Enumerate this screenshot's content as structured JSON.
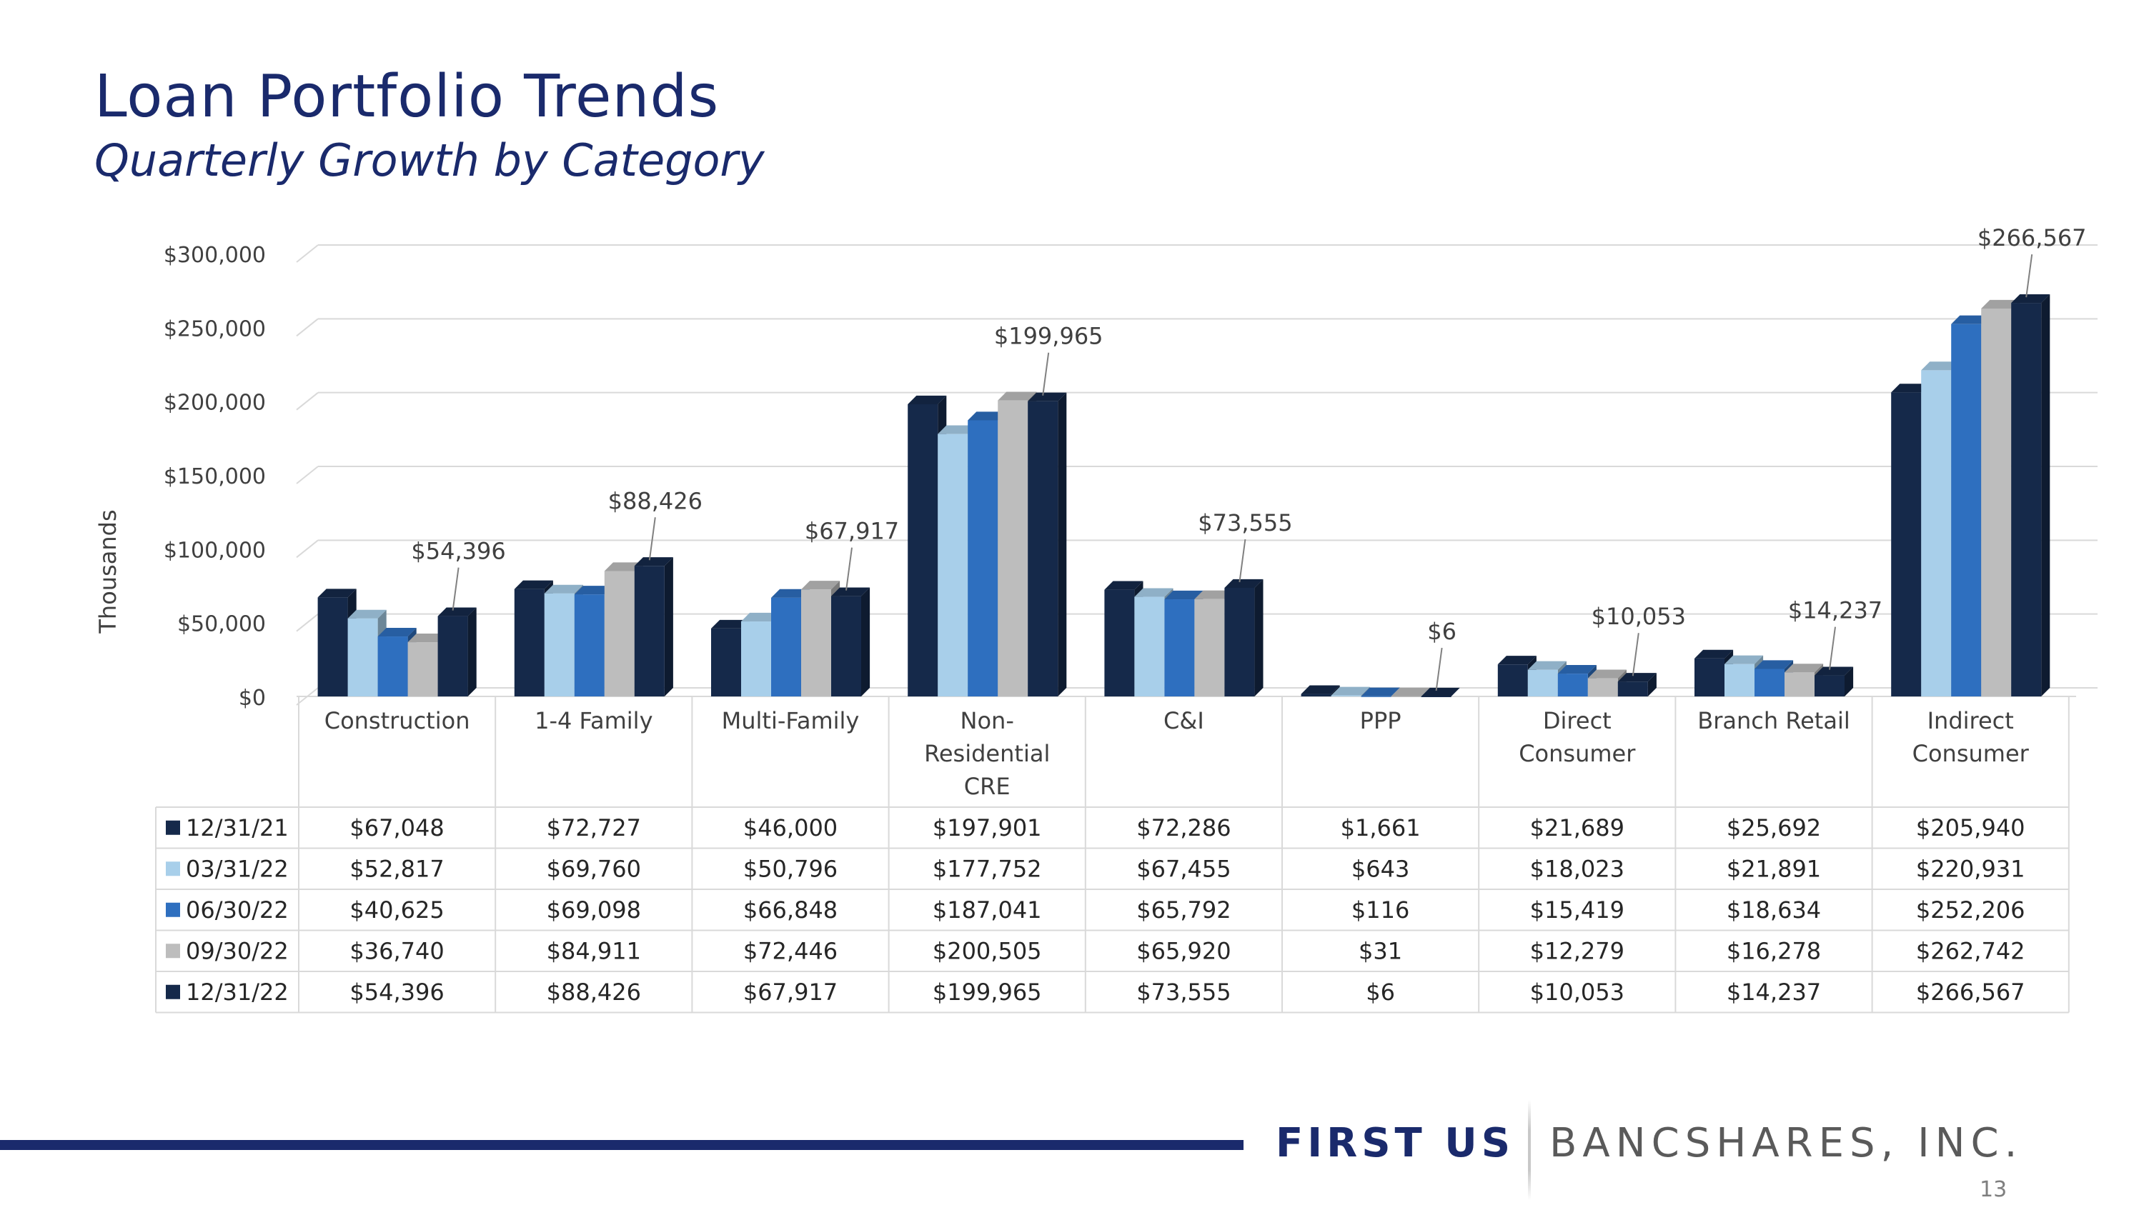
{
  "slide": {
    "title": "Loan Portfolio Trends",
    "subtitle": "Quarterly Growth by Category",
    "brand_primary": "FIRST US",
    "brand_secondary": "BANCSHARES, INC.",
    "page_number": "13"
  },
  "colors": {
    "title": "#1a2a6c",
    "series": [
      "#15294a",
      "#a8cfea",
      "#2e6fbf",
      "#bdbdbd",
      "#15294a"
    ]
  },
  "chart_data": {
    "type": "bar",
    "ylabel": "Thousands",
    "ylim": [
      0,
      300000
    ],
    "yticks": [
      0,
      50000,
      100000,
      150000,
      200000,
      250000,
      300000
    ],
    "ytick_labels": [
      "$0",
      "$50,000",
      "$100,000",
      "$150,000",
      "$200,000",
      "$250,000",
      "$300,000"
    ],
    "categories": [
      "Construction",
      "1-4 Family",
      "Multi-Family",
      "Non-Residential CRE",
      "C&I",
      "PPP",
      "Direct Consumer",
      "Branch Retail",
      "Indirect Consumer"
    ],
    "category_lines": [
      [
        "Construction"
      ],
      [
        "1-4 Family"
      ],
      [
        "Multi-Family"
      ],
      [
        "Non-",
        "Residential",
        "CRE"
      ],
      [
        "C&I"
      ],
      [
        "PPP"
      ],
      [
        "Direct",
        "Consumer"
      ],
      [
        "Branch Retail"
      ],
      [
        "Indirect",
        "Consumer"
      ]
    ],
    "series": [
      {
        "name": "12/31/21",
        "values": [
          67048,
          72727,
          46000,
          197901,
          72286,
          1661,
          21689,
          25692,
          205940
        ],
        "labels": [
          "$67,048",
          "$72,727",
          "$46,000",
          "$197,901",
          "$72,286",
          "$1,661",
          "$21,689",
          "$25,692",
          "$205,940"
        ]
      },
      {
        "name": "03/31/22",
        "values": [
          52817,
          69760,
          50796,
          177752,
          67455,
          643,
          18023,
          21891,
          220931
        ],
        "labels": [
          "$52,817",
          "$69,760",
          "$50,796",
          "$177,752",
          "$67,455",
          "$643",
          "$18,023",
          "$21,891",
          "$220,931"
        ]
      },
      {
        "name": "06/30/22",
        "values": [
          40625,
          69098,
          66848,
          187041,
          65792,
          116,
          15419,
          18634,
          252206
        ],
        "labels": [
          "$40,625",
          "$69,098",
          "$66,848",
          "$187,041",
          "$65,792",
          "$116",
          "$15,419",
          "$18,634",
          "$252,206"
        ]
      },
      {
        "name": "09/30/22",
        "values": [
          36740,
          84911,
          72446,
          200505,
          65920,
          31,
          12279,
          16278,
          262742
        ],
        "labels": [
          "$36,740",
          "$84,911",
          "$72,446",
          "$200,505",
          "$65,920",
          "$31",
          "$12,279",
          "$16,278",
          "$262,742"
        ]
      },
      {
        "name": "12/31/22",
        "values": [
          54396,
          88426,
          67917,
          199965,
          73555,
          6,
          10053,
          14237,
          266567
        ],
        "labels": [
          "$54,396",
          "$88,426",
          "$67,917",
          "$199,965",
          "$73,555",
          "$6",
          "$10,053",
          "$14,237",
          "$266,567"
        ]
      }
    ],
    "annotations": [
      "$54,396",
      "$88,426",
      "$67,917",
      "$199,965",
      "$73,555",
      "$6",
      "$10,053",
      "$14,237",
      "$266,567"
    ],
    "grid": true,
    "legend": "data-table"
  }
}
